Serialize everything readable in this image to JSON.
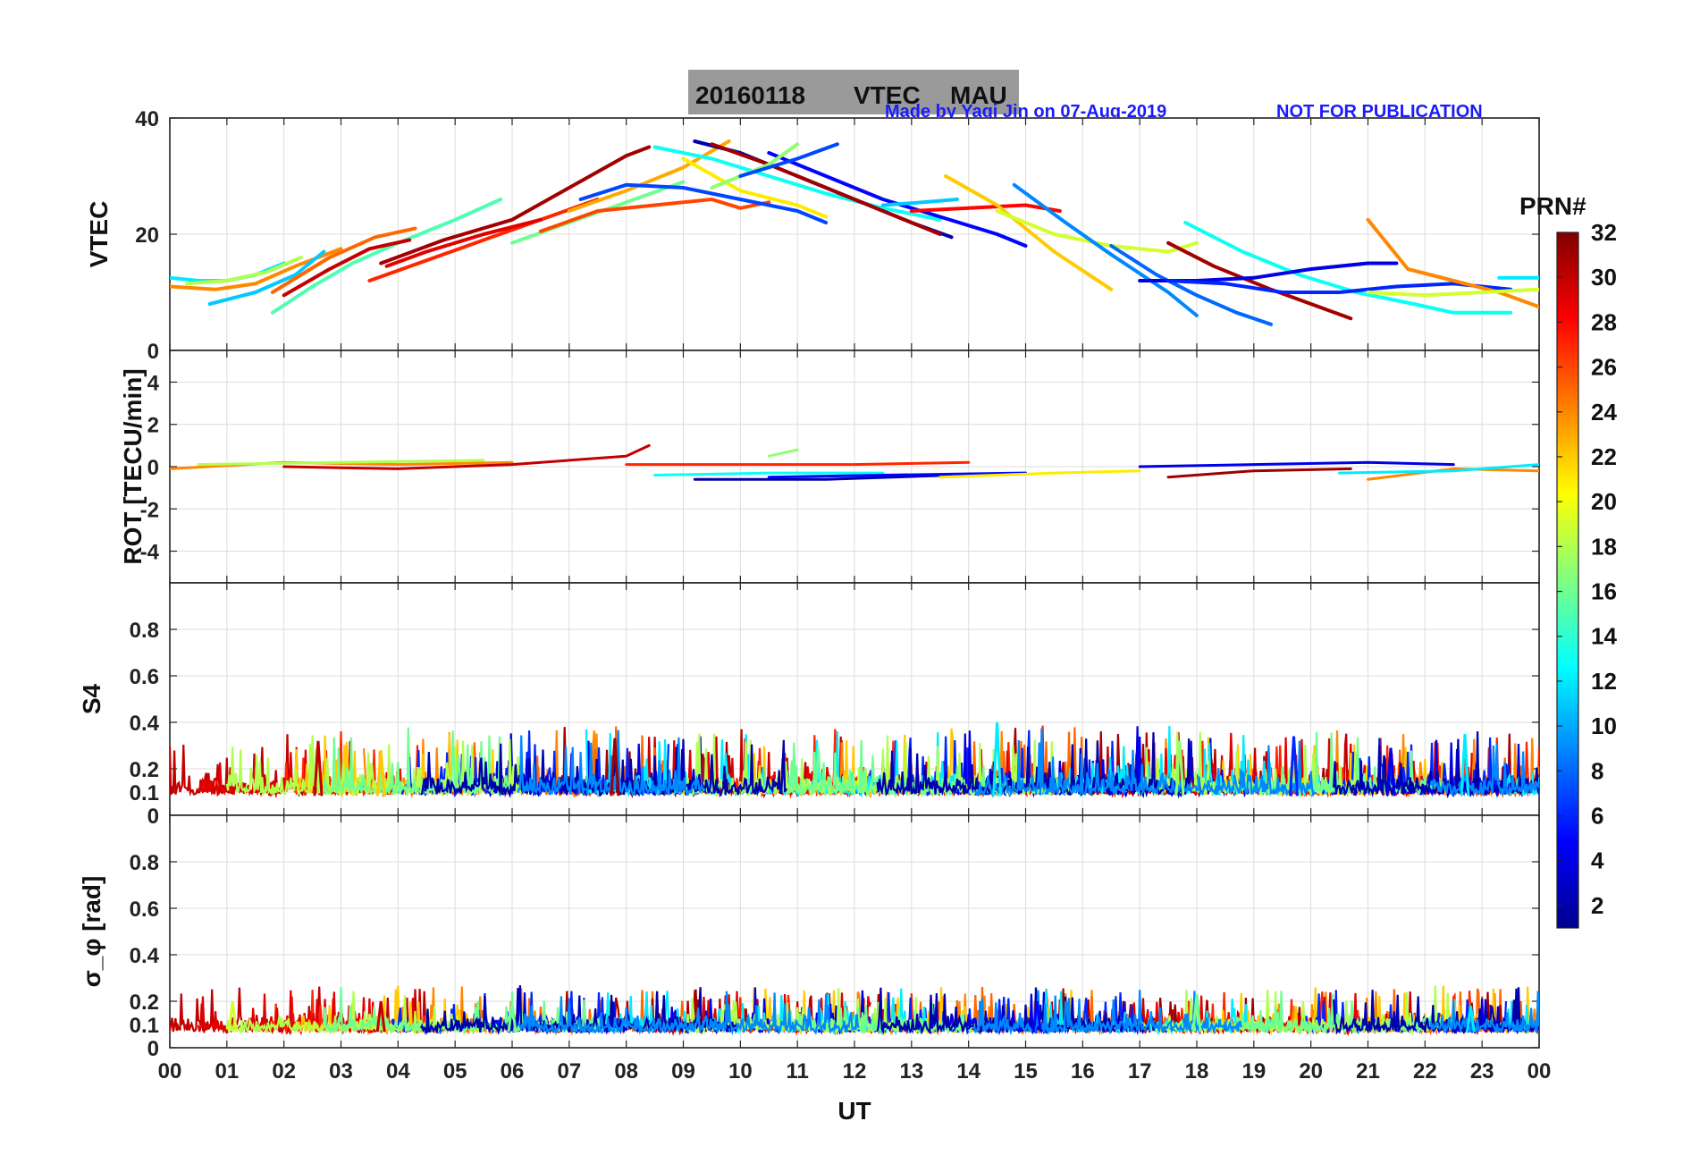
{
  "title": {
    "date": "20160118",
    "label": "VTEC",
    "station": "MAU"
  },
  "credit": {
    "made_by": "Made by Yaqi Jin on 07-Aug-2019",
    "notice": "NOT FOR PUBLICATION"
  },
  "colorbar": {
    "title": "PRN#",
    "ticks": [
      "2",
      "4",
      "6",
      "8",
      "10",
      "12",
      "14",
      "16",
      "18",
      "20",
      "22",
      "24",
      "26",
      "28",
      "30",
      "32"
    ],
    "range": [
      1,
      32
    ],
    "colormap": "jet",
    "stops": [
      "#00008f",
      "#0000ff",
      "#0080ff",
      "#00ffff",
      "#80ff80",
      "#ffff00",
      "#ff8000",
      "#ff0000",
      "#800000"
    ]
  },
  "xaxis": {
    "label": "UT",
    "ticks": [
      "00",
      "01",
      "02",
      "03",
      "04",
      "05",
      "06",
      "07",
      "08",
      "09",
      "10",
      "11",
      "12",
      "13",
      "14",
      "15",
      "16",
      "17",
      "18",
      "19",
      "20",
      "21",
      "22",
      "23",
      "00"
    ]
  },
  "chart_data": [
    {
      "type": "line",
      "panel": "vtec",
      "ylabel": "VTEC",
      "ylim": [
        0,
        40
      ],
      "yticks": [
        "0",
        "20",
        "40"
      ],
      "grid": true,
      "series": [
        {
          "prn": 12,
          "x": [
            0.0,
            0.5,
            1.0,
            1.5,
            2.0
          ],
          "y": [
            12.5,
            12.0,
            12.0,
            13.0,
            15.0
          ]
        },
        {
          "prn": 24,
          "x": [
            0.0,
            0.8,
            1.5,
            2.2,
            3.0
          ],
          "y": [
            11.0,
            10.5,
            11.5,
            14.5,
            17.5
          ]
        },
        {
          "prn": 18,
          "x": [
            0.3,
            1.0,
            1.7,
            2.3
          ],
          "y": [
            11.5,
            12.0,
            13.5,
            16.0
          ]
        },
        {
          "prn": 11,
          "x": [
            0.7,
            1.5,
            2.2,
            2.7
          ],
          "y": [
            8.0,
            10.0,
            13.0,
            17.0
          ]
        },
        {
          "prn": 15,
          "x": [
            1.8,
            2.5,
            3.2,
            4.0,
            5.0,
            5.8
          ],
          "y": [
            6.5,
            11.0,
            15.0,
            18.5,
            22.5,
            26.0
          ]
        },
        {
          "prn": 30,
          "x": [
            2.0,
            2.8,
            3.5,
            4.2
          ],
          "y": [
            9.5,
            14.0,
            17.5,
            19.0
          ]
        },
        {
          "prn": 25,
          "x": [
            1.8,
            2.8,
            3.6,
            4.3
          ],
          "y": [
            10.0,
            16.0,
            19.5,
            21.0
          ]
        },
        {
          "prn": 27,
          "x": [
            3.5,
            4.5,
            5.5,
            6.5,
            7.5
          ],
          "y": [
            12.0,
            15.5,
            19.0,
            22.5,
            26.0
          ]
        },
        {
          "prn": 29,
          "x": [
            3.8,
            4.5,
            5.5,
            6.5
          ],
          "y": [
            14.5,
            17.0,
            20.0,
            22.5
          ]
        },
        {
          "prn": 31,
          "x": [
            3.7,
            4.8,
            6.0,
            7.0,
            8.0,
            8.4
          ],
          "y": [
            15.0,
            19.0,
            22.5,
            28.0,
            33.5,
            35.0
          ]
        },
        {
          "prn": 16,
          "x": [
            6.0,
            7.0,
            8.0,
            9.0
          ],
          "y": [
            18.5,
            22.0,
            25.5,
            29.0
          ]
        },
        {
          "prn": 23,
          "x": [
            7.0,
            8.0,
            9.0,
            9.8
          ],
          "y": [
            24.0,
            27.5,
            31.5,
            36.0
          ]
        },
        {
          "prn": 26,
          "x": [
            6.5,
            7.5,
            8.5,
            9.5,
            10.0,
            10.5
          ],
          "y": [
            20.5,
            24.0,
            25.0,
            26.0,
            24.5,
            25.5
          ]
        },
        {
          "prn": 7,
          "x": [
            7.2,
            8.0,
            9.0,
            10.0,
            11.0,
            11.5
          ],
          "y": [
            26.0,
            28.5,
            28.0,
            26.0,
            24.0,
            22.0
          ]
        },
        {
          "prn": 13,
          "x": [
            8.5,
            9.5,
            10.5,
            11.5,
            12.5,
            13.5
          ],
          "y": [
            35.0,
            33.0,
            30.0,
            27.0,
            24.5,
            22.5
          ]
        },
        {
          "prn": 21,
          "x": [
            9.0,
            10.0,
            11.0,
            11.5
          ],
          "y": [
            33.0,
            27.5,
            25.0,
            23.0
          ]
        },
        {
          "prn": 2,
          "x": [
            9.2,
            10.0,
            11.0,
            12.0,
            13.0,
            13.7
          ],
          "y": [
            36.0,
            34.0,
            30.0,
            26.0,
            22.0,
            19.5
          ]
        },
        {
          "prn": 31,
          "x": [
            9.5,
            10.5,
            11.5,
            12.5,
            13.5
          ],
          "y": [
            35.5,
            32.0,
            28.0,
            24.0,
            20.0
          ]
        },
        {
          "prn": 5,
          "x": [
            10.5,
            11.5,
            12.5,
            13.5,
            14.5,
            15.0
          ],
          "y": [
            34.0,
            30.0,
            26.0,
            23.0,
            20.0,
            18.0
          ]
        },
        {
          "prn": 17,
          "x": [
            9.5,
            10.5,
            11.0
          ],
          "y": [
            28.0,
            32.0,
            35.5
          ]
        },
        {
          "prn": 7,
          "x": [
            10.0,
            11.0,
            11.7
          ],
          "y": [
            30.0,
            33.0,
            35.5
          ]
        },
        {
          "prn": 11,
          "x": [
            12.5,
            13.2,
            13.8
          ],
          "y": [
            25.0,
            25.5,
            26.0
          ]
        },
        {
          "prn": 28,
          "x": [
            13.0,
            14.0,
            15.0,
            15.6
          ],
          "y": [
            24.0,
            24.5,
            25.0,
            24.0
          ]
        },
        {
          "prn": 22,
          "x": [
            13.6,
            14.5,
            15.5,
            16.5
          ],
          "y": [
            30.0,
            25.0,
            17.0,
            10.5
          ]
        },
        {
          "prn": 19,
          "x": [
            14.5,
            15.5,
            16.5,
            17.5,
            18.0
          ],
          "y": [
            24.0,
            20.0,
            18.0,
            17.0,
            18.5
          ]
        },
        {
          "prn": 9,
          "x": [
            14.8,
            15.7,
            16.5,
            17.5,
            18.0
          ],
          "y": [
            28.5,
            22.0,
            16.5,
            10.0,
            6.0
          ]
        },
        {
          "prn": 8,
          "x": [
            16.5,
            17.3,
            18.0,
            18.7,
            19.3
          ],
          "y": [
            18.0,
            13.0,
            9.5,
            6.5,
            4.5
          ]
        },
        {
          "prn": 31,
          "x": [
            17.5,
            18.3,
            19.3,
            20.0,
            20.7
          ],
          "y": [
            18.5,
            14.5,
            10.5,
            8.0,
            5.5
          ]
        },
        {
          "prn": 13,
          "x": [
            17.8,
            18.8,
            19.8,
            20.8,
            21.8,
            22.5,
            23.5
          ],
          "y": [
            22.0,
            17.0,
            13.0,
            10.0,
            8.0,
            6.5,
            6.5
          ]
        },
        {
          "prn": 4,
          "x": [
            17.0,
            18.0,
            19.0,
            20.0,
            21.0,
            21.5
          ],
          "y": [
            12.0,
            12.0,
            12.5,
            14.0,
            15.0,
            15.0
          ]
        },
        {
          "prn": 6,
          "x": [
            17.5,
            18.5,
            19.5,
            20.5,
            21.5,
            22.5,
            23.5
          ],
          "y": [
            12.0,
            11.5,
            10.0,
            10.0,
            11.0,
            11.5,
            10.5
          ]
        },
        {
          "prn": 24,
          "x": [
            21.0,
            21.7,
            22.5,
            23.3,
            24.0
          ],
          "y": [
            22.5,
            14.0,
            12.0,
            10.0,
            7.5
          ]
        },
        {
          "prn": 19,
          "x": [
            21.0,
            22.0,
            23.0,
            24.0
          ],
          "y": [
            10.0,
            9.5,
            10.0,
            10.5
          ]
        },
        {
          "prn": 12,
          "x": [
            23.3,
            24.0
          ],
          "y": [
            12.5,
            12.5
          ]
        }
      ]
    },
    {
      "type": "line",
      "panel": "rot",
      "ylabel": "ROT [TECU/min]",
      "ylim": [
        -5.5,
        5.5
      ],
      "yticks": [
        "-4",
        "-2",
        "0",
        "2",
        "4"
      ],
      "grid": true,
      "series": [
        {
          "prn": 24,
          "x": [
            0.0,
            2.0,
            4.0,
            6.0
          ],
          "y": [
            -0.1,
            0.2,
            0.1,
            0.2
          ]
        },
        {
          "prn": 30,
          "x": [
            2.0,
            4.0,
            6.0,
            8.0,
            8.4
          ],
          "y": [
            0.0,
            -0.1,
            0.1,
            0.5,
            1.0
          ]
        },
        {
          "prn": 18,
          "x": [
            0.5,
            3.0,
            5.5
          ],
          "y": [
            0.1,
            0.2,
            0.3
          ]
        },
        {
          "prn": 13,
          "x": [
            8.5,
            10.5,
            12.5
          ],
          "y": [
            -0.4,
            -0.3,
            -0.3
          ]
        },
        {
          "prn": 2,
          "x": [
            9.2,
            11.5,
            13.7
          ],
          "y": [
            -0.6,
            -0.6,
            -0.4
          ]
        },
        {
          "prn": 27,
          "x": [
            8.0,
            10.0,
            12.0,
            14.0
          ],
          "y": [
            0.1,
            0.1,
            0.1,
            0.2
          ]
        },
        {
          "prn": 5,
          "x": [
            10.5,
            12.5,
            15.0
          ],
          "y": [
            -0.5,
            -0.4,
            -0.3
          ]
        },
        {
          "prn": 21,
          "x": [
            13.5,
            15.5,
            17.0
          ],
          "y": [
            -0.5,
            -0.3,
            -0.2
          ]
        },
        {
          "prn": 17,
          "x": [
            10.5,
            11.0
          ],
          "y": [
            0.5,
            0.8
          ]
        },
        {
          "prn": 4,
          "x": [
            17.0,
            19.0,
            21.0,
            22.5
          ],
          "y": [
            0.0,
            0.1,
            0.2,
            0.1
          ]
        },
        {
          "prn": 31,
          "x": [
            17.5,
            19.0,
            20.7
          ],
          "y": [
            -0.5,
            -0.2,
            -0.1
          ]
        },
        {
          "prn": 24,
          "x": [
            21.0,
            22.5,
            24.0
          ],
          "y": [
            -0.6,
            -0.1,
            -0.2
          ]
        },
        {
          "prn": 12,
          "x": [
            20.5,
            22.5,
            24.0
          ],
          "y": [
            -0.3,
            -0.2,
            0.1
          ]
        }
      ]
    },
    {
      "type": "line",
      "panel": "s4",
      "ylabel": "S4",
      "ylim": [
        0,
        1
      ],
      "yticks": [
        "0",
        "0.1",
        "0.2",
        "0.4",
        "0.6",
        "0.8"
      ],
      "grid": true,
      "typical_range": [
        0.04,
        0.33
      ],
      "peaks": [
        {
          "prn": 30,
          "x": 2.6,
          "y": 0.32
        },
        {
          "prn": 31,
          "x": 7.8,
          "y": 0.33
        },
        {
          "prn": 22,
          "x": 3.7,
          "y": 0.28
        },
        {
          "prn": 12,
          "x": 14.5,
          "y": 0.4
        },
        {
          "prn": 12,
          "x": 22.7,
          "y": 0.35
        },
        {
          "prn": 6,
          "x": 19.7,
          "y": 0.34
        },
        {
          "prn": 17,
          "x": 17.7,
          "y": 0.32
        },
        {
          "prn": 4,
          "x": 21.4,
          "y": 0.29
        }
      ]
    },
    {
      "type": "line",
      "panel": "sigma_phi",
      "ylabel": "σ_φ [rad]",
      "ylim": [
        0,
        1
      ],
      "yticks": [
        "0",
        "0.1",
        "0.2",
        "0.4",
        "0.6",
        "0.8"
      ],
      "grid": true,
      "typical_range": [
        0.04,
        0.23
      ],
      "peaks": [
        {
          "prn": 19,
          "x": 1.1,
          "y": 0.2
        },
        {
          "prn": 30,
          "x": 3.7,
          "y": 0.2
        },
        {
          "prn": 16,
          "x": 6.0,
          "y": 0.19
        },
        {
          "prn": 5,
          "x": 15.2,
          "y": 0.2
        },
        {
          "prn": 16,
          "x": 18.0,
          "y": 0.23
        },
        {
          "prn": 12,
          "x": 22.8,
          "y": 0.18
        }
      ]
    }
  ]
}
